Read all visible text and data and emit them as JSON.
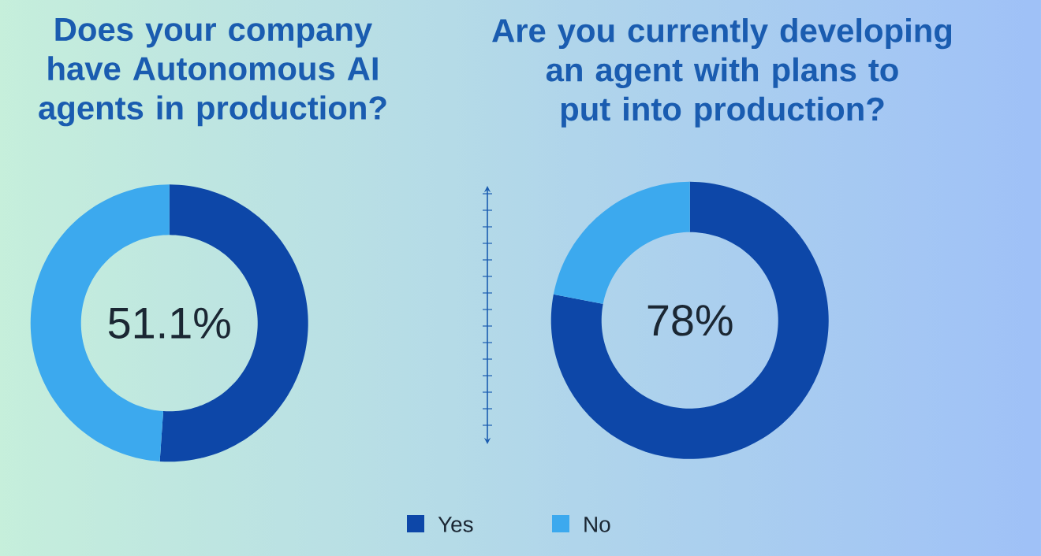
{
  "chart_data": [
    {
      "type": "donut",
      "title": "Does your company have Autonomous AI agents in production?",
      "categories": [
        "Yes",
        "No"
      ],
      "values": [
        51.1,
        48.9
      ],
      "colors": [
        "#0d47a8",
        "#3ca9ee"
      ],
      "annotations": [
        "51.1%"
      ],
      "legend": "bottom"
    },
    {
      "type": "donut",
      "title": "Are you currently developing an agent with plans to put into production?",
      "categories": [
        null,
        null
      ],
      "values": [
        78,
        22
      ],
      "colors": [
        "#0d47a8",
        "#3ca9ee"
      ],
      "annotations": [
        "78%"
      ]
    }
  ]
}
